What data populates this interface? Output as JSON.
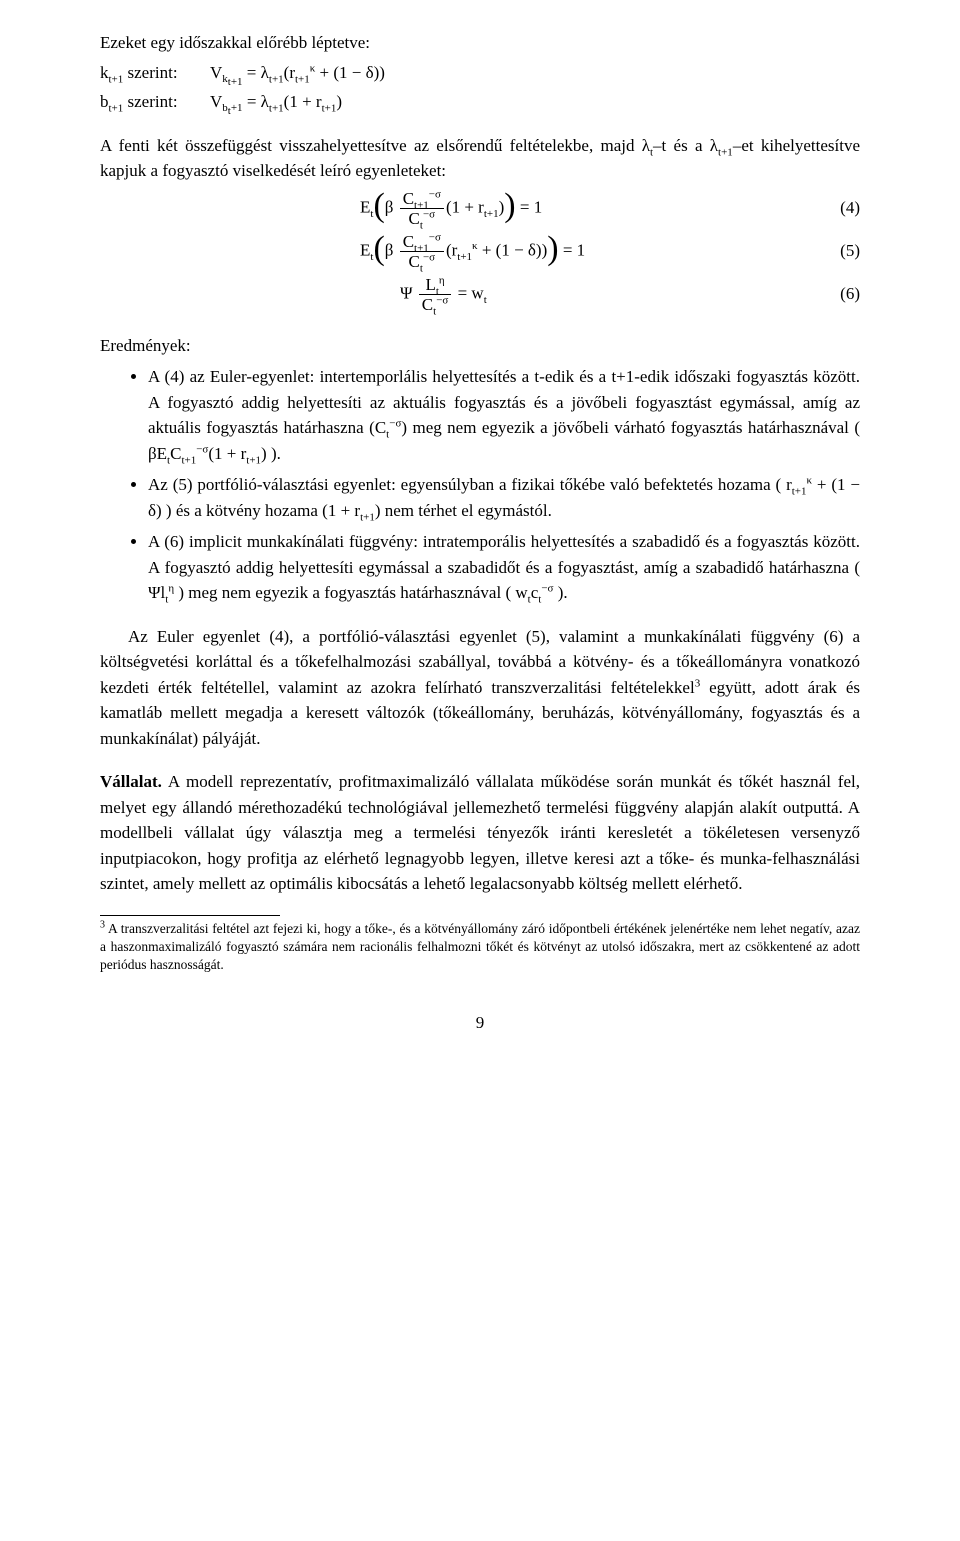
{
  "intro_line": "Ezeket egy időszakkal előrébb léptetve:",
  "eq_a_label": "k",
  "eq_a_sub": "t+1",
  "eq_a_after": " szerint:",
  "eq_a_body": "V<sub>k<sub>t+1</sub></sub> = λ<sub>t+1</sub>(r<sub>t+1</sub><sup>κ</sup> + (1 − δ))",
  "eq_b_label": "b",
  "eq_b_sub": "t+1",
  "eq_b_after": " szerint:",
  "eq_b_body": "V<sub>b<sub>t</sub>+1</sub> = λ<sub>t+1</sub>(1 + r<sub>t+1</sub>)",
  "para_mid": "A fenti két összefüggést visszahelyettesítve az elsőrendű feltételekbe, majd λ<sub>t</sub>–t és a λ<sub>t+1</sub>–et kihelyettesítve kapjuk a fogyasztó viselkedését leíró egyenleteket:",
  "eq4_num": "(4)",
  "eq5_num": "(5)",
  "eq6_num": "(6)",
  "eq4_html": "E<sub>t</sub><span class=\"bigparen\">(</span>β <span class=\"frac\"><span class=\"num\">C<sub>t+1</sub><sup>−σ</sup></span><span class=\"den\">C<sub>t</sub><sup>−σ</sup></span></span>(1 + r<sub>t+1</sub>)<span class=\"bigparen\">)</span> = 1",
  "eq5_html": "E<sub>t</sub><span class=\"bigparen\">(</span>β <span class=\"frac\"><span class=\"num\">C<sub>t+1</sub><sup>−σ</sup></span><span class=\"den\">C<sub>t</sub><sup>−σ</sup></span></span>(r<sub>t+1</sub><sup>κ</sup> + (1 − δ))<span class=\"bigparen\">)</span> = 1",
  "eq6_html": "Ψ <span class=\"frac\"><span class=\"num\">L<sub>t</sub><sup>η</sup></span><span class=\"den\">C<sub>t</sub><sup>−σ</sup></span></span> = w<sub>t</sub>",
  "results_heading": "Eredmények:",
  "bullet1": "A (4) az Euler-egyenlet: intertemporlális helyettesítés a t-edik és a t+1-edik időszaki fogyasztás között. A fogyasztó addig helyettesíti az aktuális fogyasztás és a jövőbeli fogyasztást egymással, amíg az aktuális fogyasztás határhaszna (C<sub>t</sub><sup>−σ</sup>) meg nem egyezik a jövőbeli várható fogyasztás határhasznával ( βE<sub>t</sub>C<sub>t+1</sub><sup>−σ</sup>(1 + r<sub>t+1</sub>) ).",
  "bullet2": "Az (5) portfólió-választási egyenlet: egyensúlyban a fizikai tőkébe való befektetés hozama ( r<sub>t+1</sub><sup>κ</sup> + (1 − δ) ) és a kötvény hozama (1 + r<sub>t+1</sub>) nem térhet el egymástól.",
  "bullet3": "A (6) implicit munkakínálati függvény: intratemporális helyettesítés a szabadidő és a fogyasztás között. A fogyasztó addig helyettesíti egymással a szabadidőt és a fogyasztást, amíg a szabadidő határhaszna ( Ψl<sub>t</sub><sup>η</sup> ) meg nem egyezik a fogyasztás határhasznával ( w<sub>t</sub>c<sub>t</sub><sup>−σ</sup> ).",
  "para_after_bullets": "Az Euler egyenlet (4), a portfólió-választási egyenlet (5), valamint a munkakínálati függvény (6) a költségvetési korláttal és a tőkefelhalmozási szabállyal, továbbá a kötvény- és a tőkeállományra vonatkozó kezdeti érték feltétellel, valamint az azokra felírható transzverzalitási feltételekkel<sup>3</sup> együtt, adott árak és kamatláb mellett megadja a keresett változók (tőkeállomány, beruházás, kötvényállomány, fogyasztás és a munkakínálat) pályáját.",
  "section2_title": "Vállalat.",
  "section2_body": " A modell reprezentatív, profitmaximalizáló vállalata működése során munkát és tőkét használ fel, melyet egy állandó mérethozadékú technológiával jellemezhető termelési függvény alapján alakít outputtá. A modellbeli vállalat úgy választja meg a termelési tényezők iránti keresletét a tökéletesen versenyző inputpiacokon, hogy profitja az elérhető legnagyobb legyen, illetve keresi azt a tőke- és munka-felhasználási szintet, amely mellett az optimális kibocsátás a lehető legalacsonyabb költség mellett elérhető.",
  "footnote_marker": "3",
  "footnote_text": " A transzverzalitási feltétel azt fejezi ki, hogy a tőke-, és a kötvényállomány záró időpontbeli értékének jelenértéke nem lehet negatív, azaz a haszonmaximalizáló fogyasztó számára nem racionális felhalmozni tőkét és kötvényt az utolsó időszakra, mert az csökkentené az adott periódus hasznosságát.",
  "page_number": "9"
}
